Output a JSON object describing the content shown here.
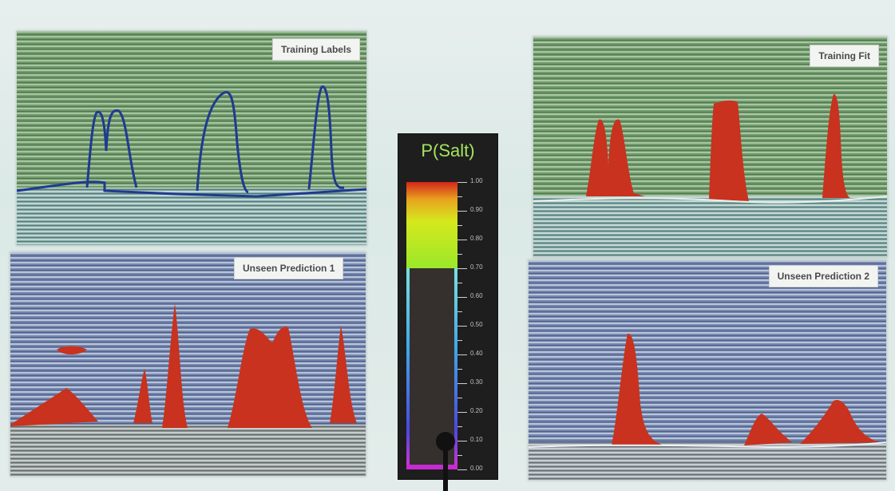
{
  "panels": {
    "top_left": {
      "label": "Training Labels"
    },
    "top_right": {
      "label": "Training Fit"
    },
    "bottom_left": {
      "label": "Unseen Prediction 1"
    },
    "bottom_right": {
      "label": "Unseen Prediction 2"
    }
  },
  "colorbar": {
    "title": "P(Salt)",
    "ticks": [
      "1.00",
      "0.90",
      "0.80",
      "0.70",
      "0.60",
      "0.50",
      "0.40",
      "0.30",
      "0.20",
      "0.10",
      "0.00"
    ]
  },
  "colors": {
    "salt_red": "#c8321e",
    "seismic_green": "#7fa27c",
    "seismic_blue": "#7d8fb4",
    "label_line": "#1f3b8f",
    "colorbar_title": "#a6e35f"
  }
}
